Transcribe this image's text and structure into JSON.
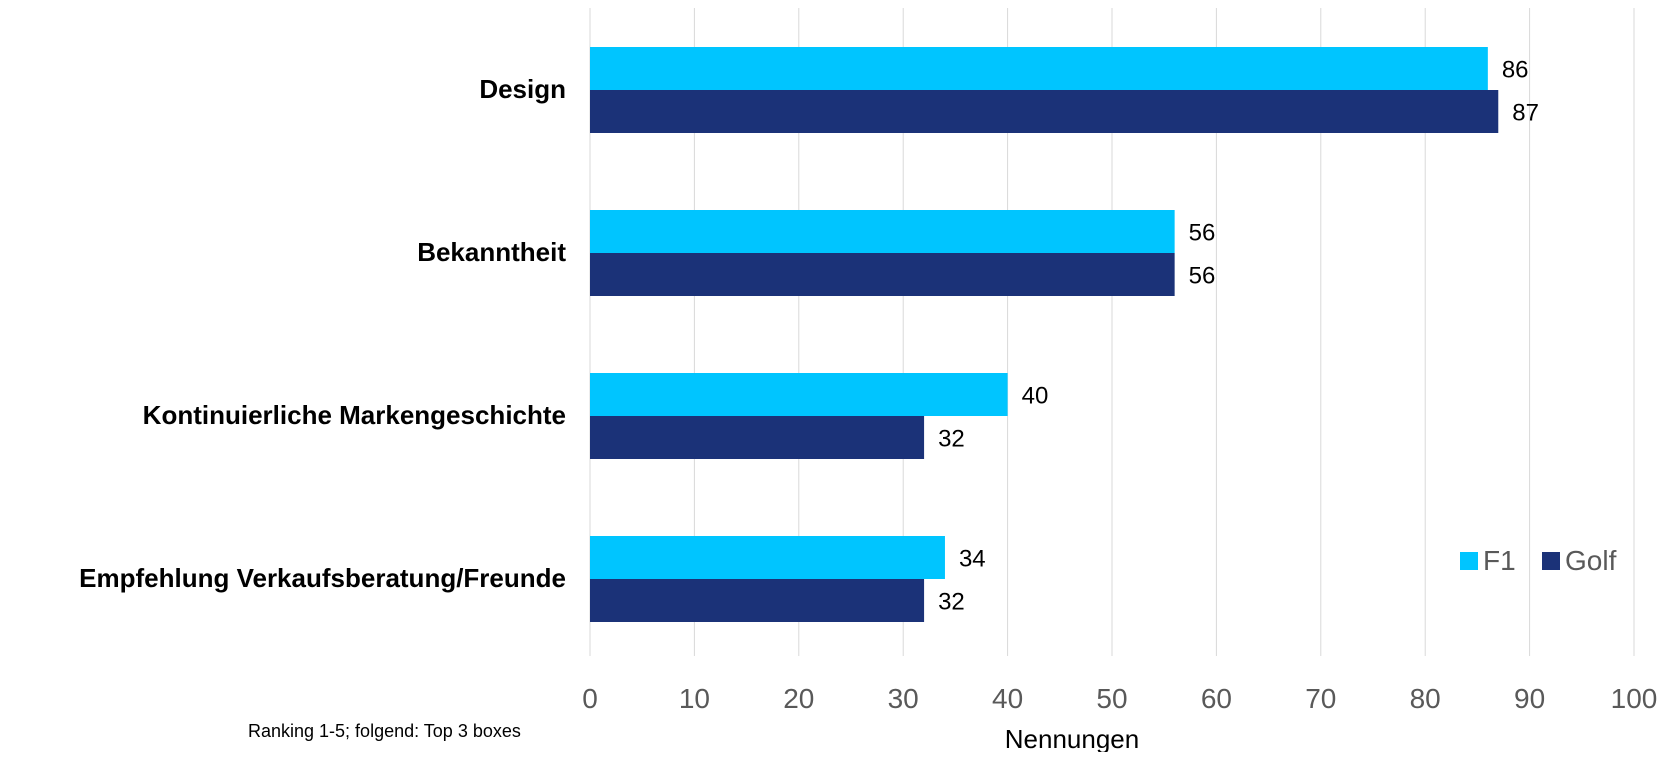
{
  "chart_data": {
    "type": "bar",
    "orientation": "horizontal",
    "categories": [
      "Design",
      "Bekanntheit",
      "Kontinuierliche Markengeschichte",
      "Empfehlung Verkaufsberatung/Freunde"
    ],
    "series": [
      {
        "name": "F1",
        "color": "#00c5ff",
        "values": [
          86,
          56,
          40,
          34
        ]
      },
      {
        "name": "Golf",
        "color": "#1b3278",
        "values": [
          87,
          56,
          32,
          32
        ]
      }
    ],
    "xlabel": "Nennungen",
    "ylabel": "",
    "xlim": [
      0,
      100
    ],
    "xticks": [
      0,
      10,
      20,
      30,
      40,
      50,
      60,
      70,
      80,
      90,
      100
    ],
    "grid": "vertical",
    "legend": "bottom-right",
    "note": "Ranking 1-5; folgend: Top 3 boxes"
  }
}
